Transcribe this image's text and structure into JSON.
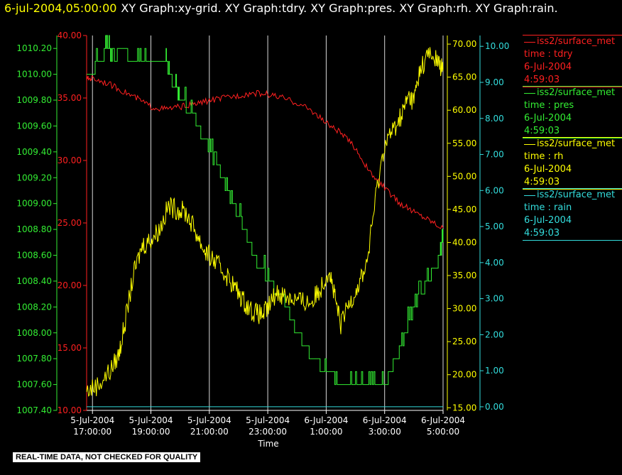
{
  "header": {
    "time_label": "6-jul-2004,05:00:00",
    "graph_list": "XY Graph:xy-grid.  XY Graph:tdry.  XY Graph:pres.  XY Graph:rh.  XY Graph:rain."
  },
  "footer": {
    "notice": "REAL-TIME DATA, NOT CHECKED FOR QUALITY"
  },
  "colors": {
    "tdry": "#ff2020",
    "pres": "#33ee33",
    "rh": "#ffff00",
    "rain": "#33dddd",
    "grid": "#ffffff"
  },
  "legend": [
    {
      "key": "tdry",
      "source": "iss2/surface_met",
      "line1": "time : tdry",
      "line2": "6-Jul-2004",
      "line3": "4:59:03"
    },
    {
      "key": "pres",
      "source": "iss2/surface_met",
      "line1": "time : pres",
      "line2": "6-Jul-2004",
      "line3": "4:59:03"
    },
    {
      "key": "rh",
      "source": "iss2/surface_met",
      "line1": "time : rh",
      "line2": "6-Jul-2004",
      "line3": "4:59:03"
    },
    {
      "key": "rain",
      "source": "iss2/surface_met",
      "line1": "time : rain",
      "line2": "6-Jul-2004",
      "line3": "4:59:03"
    }
  ],
  "chart_data": {
    "type": "line",
    "xlabel": "Time",
    "x_ticks": [
      {
        "x": 17,
        "date": "5-Jul-2004",
        "time": "17:00:00"
      },
      {
        "x": 19,
        "date": "5-Jul-2004",
        "time": "19:00:00"
      },
      {
        "x": 21,
        "date": "5-Jul-2004",
        "time": "21:00:00"
      },
      {
        "x": 23,
        "date": "5-Jul-2004",
        "time": "23:00:00"
      },
      {
        "x": 25,
        "date": "6-Jul-2004",
        "time": "1:00:00"
      },
      {
        "x": 27,
        "date": "6-Jul-2004",
        "time": "3:00:00"
      },
      {
        "x": 29,
        "date": "6-Jul-2004",
        "time": "5:00:00"
      }
    ],
    "x_unit": "hours since 5-Jul-2004 00:00",
    "xlim": [
      16.8,
      29
    ],
    "grid": "vertical",
    "axes": {
      "pres": {
        "ylim": [
          1007.4,
          1010.3
        ],
        "ticks": [
          "1007.40",
          "1007.60",
          "1007.80",
          "1008.00",
          "1008.20",
          "1008.40",
          "1008.60",
          "1008.80",
          "1009.00",
          "1009.20",
          "1009.40",
          "1009.60",
          "1009.80",
          "1010.00",
          "1010.20"
        ],
        "side": "left"
      },
      "tdry": {
        "ylim": [
          10,
          40
        ],
        "ticks": [
          "10.00",
          "15.00",
          "20.00",
          "25.00",
          "30.00",
          "35.00",
          "40.00"
        ],
        "side": "left"
      },
      "rh": {
        "ylim": [
          14.6,
          71.3
        ],
        "ticks": [
          "15.00",
          "20.00",
          "25.00",
          "30.00",
          "35.00",
          "40.00",
          "45.00",
          "50.00",
          "55.00",
          "60.00",
          "65.00",
          "70.00"
        ],
        "side": "right"
      },
      "rain": {
        "ylim": [
          -0.1,
          10.3
        ],
        "ticks": [
          "0.00",
          "1.00",
          "2.00",
          "3.00",
          "4.00",
          "5.00",
          "6.00",
          "7.00",
          "8.00",
          "9.00",
          "10.00"
        ],
        "side": "right"
      }
    },
    "series": [
      {
        "key": "tdry",
        "x": [
          16.8,
          17.0,
          17.5,
          18.0,
          18.5,
          19.0,
          19.5,
          20.0,
          20.5,
          21.0,
          21.5,
          22.0,
          22.5,
          23.0,
          23.5,
          24.0,
          24.5,
          25.0,
          25.5,
          26.0,
          26.5,
          27.0,
          27.5,
          28.0,
          28.5,
          29.0
        ],
        "y": [
          36.5,
          36.6,
          36.2,
          35.6,
          35.0,
          34.3,
          34.1,
          34.3,
          34.5,
          34.8,
          35.0,
          35.2,
          35.4,
          35.3,
          35.0,
          34.6,
          34.0,
          33.0,
          32.2,
          31.0,
          29.0,
          27.8,
          26.6,
          25.9,
          25.3,
          24.6
        ]
      },
      {
        "key": "pres",
        "x": [
          16.8,
          17.3,
          17.5,
          17.7,
          18.0,
          18.5,
          19.0,
          19.5,
          19.7,
          20.0,
          20.5,
          21.0,
          21.5,
          22.0,
          22.5,
          23.0,
          23.5,
          24.0,
          24.5,
          25.0,
          25.5,
          26.0,
          26.5,
          27.0,
          27.5,
          28.0,
          28.5,
          28.9,
          29.0
        ],
        "y": [
          1010.0,
          1010.1,
          1010.2,
          1010.1,
          1010.2,
          1010.05,
          1010.1,
          1010.1,
          1009.95,
          1009.8,
          1009.65,
          1009.4,
          1009.15,
          1008.9,
          1008.6,
          1008.4,
          1008.25,
          1008.0,
          1007.8,
          1007.7,
          1007.6,
          1007.65,
          1007.6,
          1007.6,
          1007.85,
          1008.2,
          1008.4,
          1008.6,
          1008.7
        ]
      },
      {
        "key": "rh",
        "x": [
          16.8,
          17.2,
          17.6,
          17.9,
          18.1,
          18.4,
          18.7,
          19.0,
          19.3,
          19.6,
          19.9,
          20.2,
          20.5,
          20.8,
          21.0,
          21.3,
          21.6,
          21.9,
          22.2,
          22.5,
          22.8,
          23.0,
          23.3,
          23.6,
          23.9,
          24.2,
          24.5,
          24.8,
          25.1,
          25.3,
          25.5,
          25.8,
          26.1,
          26.4,
          26.7,
          27.0,
          27.3,
          27.6,
          27.8,
          28.0,
          28.2,
          28.5,
          28.8,
          29.0
        ],
        "y": [
          17.5,
          18.5,
          20.5,
          23.0,
          27.5,
          35.0,
          39.5,
          40.5,
          42.0,
          45.5,
          45.0,
          44.5,
          42.0,
          39.0,
          38.0,
          36.5,
          35.0,
          33.0,
          31.0,
          29.5,
          29.0,
          30.0,
          32.5,
          32.0,
          31.5,
          31.0,
          31.0,
          33.0,
          36.0,
          31.5,
          27.5,
          31.0,
          33.5,
          37.0,
          47.0,
          55.0,
          57.0,
          59.5,
          62.0,
          61.5,
          66.0,
          68.5,
          67.5,
          66.0
        ]
      },
      {
        "key": "rain",
        "x": [
          16.8,
          29.0
        ],
        "y": [
          0,
          0
        ]
      }
    ]
  }
}
